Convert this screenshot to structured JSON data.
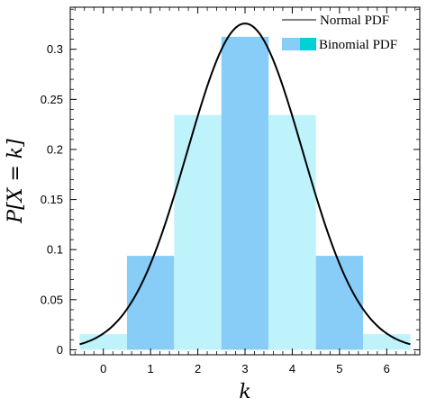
{
  "chart_data": {
    "type": "bar",
    "title": "",
    "xlabel": "k",
    "ylabel": "P[X = k]",
    "x_ticks": [
      "0",
      "1",
      "2",
      "3",
      "4",
      "5",
      "6"
    ],
    "y_ticks": [
      "0",
      "0.05",
      "0.1",
      "0.15",
      "0.2",
      "0.25",
      "0.3"
    ],
    "xlim": [
      -0.7,
      6.7
    ],
    "ylim": [
      -0.005,
      0.342
    ],
    "categories": [
      0,
      1,
      2,
      3,
      4,
      5,
      6
    ],
    "series": [
      {
        "name": "Binomial PDF",
        "values": [
          0.0156,
          0.0938,
          0.2344,
          0.3125,
          0.2344,
          0.0938,
          0.0156
        ],
        "colors": [
          "#bff3fb",
          "#88cdf8",
          "#bff3fb",
          "#88cdf8",
          "#bff3fb",
          "#88cdf8",
          "#bff3fb"
        ]
      },
      {
        "name": "Normal PDF",
        "type": "line",
        "mean": 3,
        "sd": 1.2247,
        "x_range": [
          -0.5,
          6.5
        ],
        "color": "#000000"
      }
    ],
    "legend": {
      "position": "top-right",
      "entries": [
        {
          "label": "Normal PDF",
          "symbol": "line",
          "color": "#555555"
        },
        {
          "label": "Binomial PDF",
          "symbol": "swatch",
          "colors": [
            "#88cdf8",
            "#00d0d8"
          ]
        }
      ]
    },
    "grid": false
  }
}
